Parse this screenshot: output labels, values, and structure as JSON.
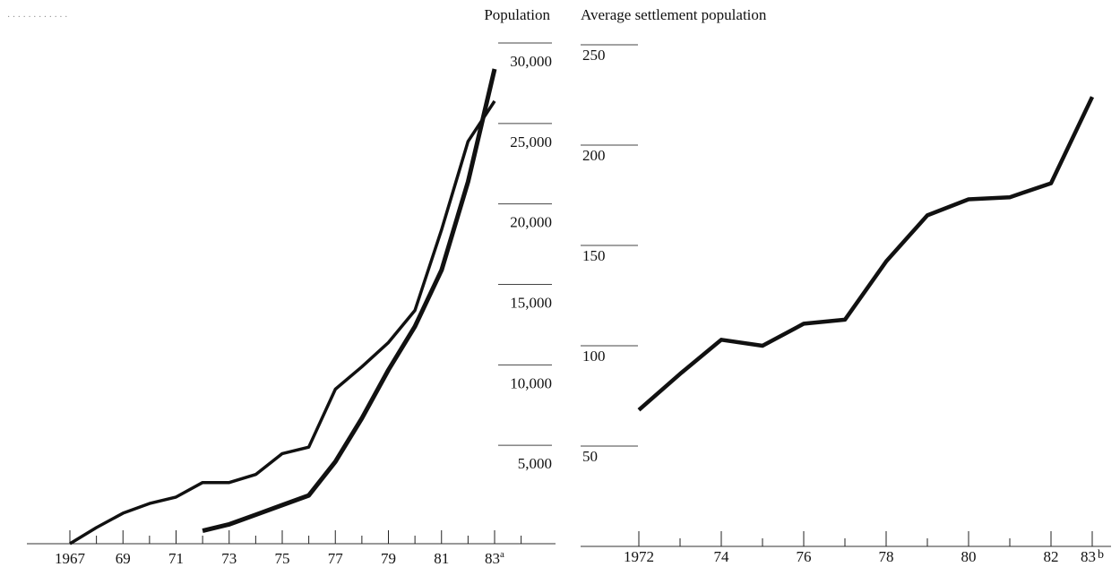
{
  "chart_data": [
    {
      "type": "line",
      "title": "",
      "faint_heading": "· · · · · · · · · · · ·",
      "ylabel": "Population",
      "xlabel": "",
      "ylim": [
        0,
        30000
      ],
      "y_ticks": [
        5000,
        10000,
        15000,
        20000,
        25000,
        30000
      ],
      "y_tick_labels": [
        "5,000",
        "10,000",
        "15,000",
        "20,000",
        "25,000",
        "30,000"
      ],
      "xlim": [
        1967,
        1985
      ],
      "x_tick_labels": [
        {
          "year": 1967,
          "label": "1967"
        },
        {
          "year": 1969,
          "label": "69"
        },
        {
          "year": 1971,
          "label": "71"
        },
        {
          "year": 1973,
          "label": "73"
        },
        {
          "year": 1975,
          "label": "75"
        },
        {
          "year": 1977,
          "label": "77"
        },
        {
          "year": 1979,
          "label": "79"
        },
        {
          "year": 1981,
          "label": "81"
        },
        {
          "year": 1983,
          "label": "83",
          "superscript": "a"
        }
      ],
      "series": [
        {
          "style": "thin",
          "x": [
            1967,
            1968,
            1969,
            1970,
            1971,
            1972,
            1973,
            1974,
            1975,
            1976,
            1977,
            1978,
            1979,
            1980,
            1981,
            1982,
            1983
          ],
          "y": [
            0,
            1000,
            1900,
            2500,
            2900,
            3800,
            3800,
            4300,
            5600,
            6000,
            9600,
            11000,
            12500,
            14500,
            19500,
            25000,
            27500
          ]
        },
        {
          "style": "thick",
          "x": [
            1972,
            1973,
            1974,
            1975,
            1976,
            1977,
            1978,
            1979,
            1980,
            1981,
            1982,
            1983
          ],
          "y": [
            800,
            1200,
            1800,
            2400,
            3000,
            5100,
            7800,
            10800,
            13500,
            17000,
            22500,
            29500
          ]
        }
      ]
    },
    {
      "type": "line",
      "title": "",
      "ylabel": "Average settlement population",
      "xlabel": "",
      "ylim": [
        0,
        250
      ],
      "y_ticks": [
        50,
        100,
        150,
        200,
        250
      ],
      "y_tick_labels": [
        "50",
        "100",
        "150",
        "200",
        "250"
      ],
      "xlim": [
        1972,
        1983
      ],
      "x_tick_labels": [
        {
          "year": 1972,
          "label": "1972"
        },
        {
          "year": 1974,
          "label": "74"
        },
        {
          "year": 1976,
          "label": "76"
        },
        {
          "year": 1978,
          "label": "78"
        },
        {
          "year": 1980,
          "label": "80"
        },
        {
          "year": 1982,
          "label": "82"
        },
        {
          "year": 1983,
          "label": "83",
          "superscript": "b"
        }
      ],
      "series": [
        {
          "style": "thick",
          "x": [
            1972,
            1973,
            1974,
            1975,
            1976,
            1977,
            1978,
            1979,
            1980,
            1981,
            1982,
            1983
          ],
          "y": [
            68,
            86,
            103,
            100,
            111,
            113,
            142,
            165,
            173,
            174,
            181,
            224
          ]
        }
      ]
    }
  ]
}
